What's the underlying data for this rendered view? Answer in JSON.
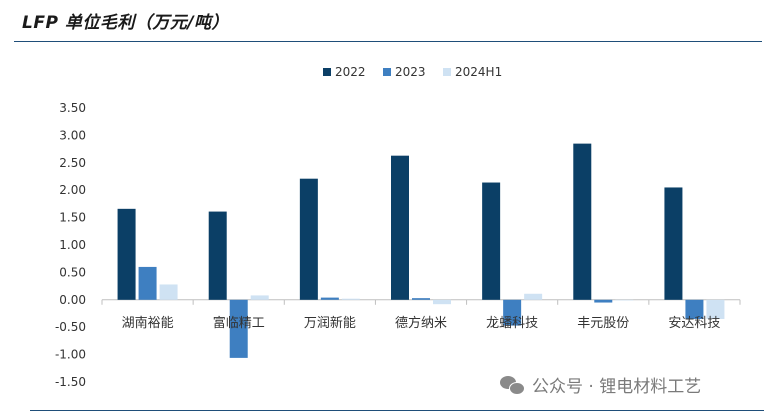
{
  "title": "LFP 单位毛利（万元/吨）",
  "watermark": "公众号 · 锂电材料工艺",
  "watermark_icon": "wechat-icon",
  "colors": {
    "2022": "#0b3f66",
    "2023": "#3e7fc1",
    "2024H1": "#cfe2f3",
    "axis": "#bfbfbf",
    "text": "#333333"
  },
  "chart_data": {
    "type": "bar",
    "categories": [
      "湖南裕能",
      "富临精工",
      "万润新能",
      "德方纳米",
      "龙蟠科技",
      "丰元股份",
      "安达科技"
    ],
    "series": [
      {
        "name": "2022",
        "values": [
          1.66,
          1.61,
          2.21,
          2.63,
          2.14,
          2.85,
          2.05
        ]
      },
      {
        "name": "2023",
        "values": [
          0.6,
          -1.06,
          0.04,
          0.03,
          -0.47,
          -0.05,
          -0.35
        ]
      },
      {
        "name": "2024H1",
        "values": [
          0.28,
          0.08,
          0.02,
          -0.08,
          0.11,
          0.0,
          -0.35
        ]
      }
    ],
    "ylim": [
      -1.5,
      3.5
    ],
    "yticks": [
      "3.50",
      "3.00",
      "2.50",
      "2.00",
      "1.50",
      "1.00",
      "0.50",
      "0.00",
      "-0.50",
      "-1.00",
      "-1.50"
    ],
    "xlabel": "",
    "ylabel": "",
    "legend": "top-center",
    "grid": false
  }
}
